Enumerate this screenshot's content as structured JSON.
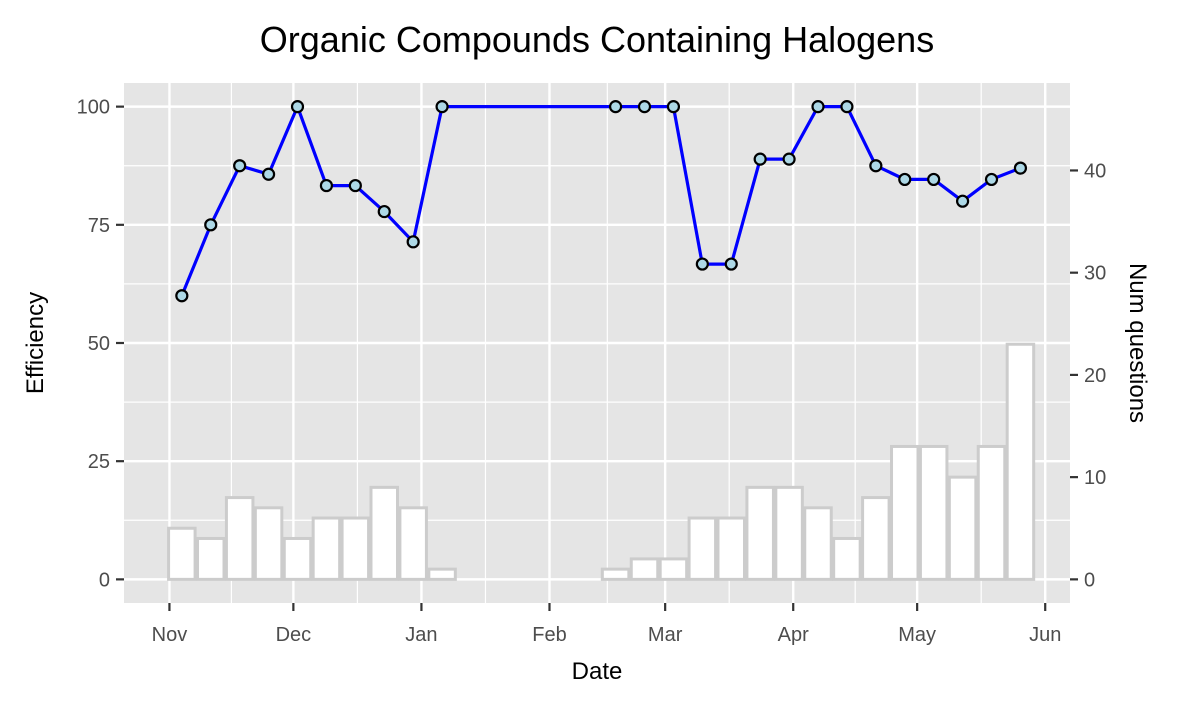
{
  "chart_data": {
    "type": "line",
    "title": "Organic Compounds Containing Halogens",
    "xlabel": "Date",
    "ylabel": "Efficiency",
    "y2label": "Num questions",
    "x_ticks": [
      "Nov",
      "Dec",
      "Jan",
      "Feb",
      "Mar",
      "Apr",
      "May",
      "Jun"
    ],
    "x_tick_dates": [
      "2020-11-01",
      "2020-12-01",
      "2021-01-01",
      "2021-02-01",
      "2021-03-01",
      "2021-04-01",
      "2021-05-01",
      "2021-06-01"
    ],
    "xlim": [
      "2020-10-21",
      "2021-06-07"
    ],
    "y_ticks": [
      "0",
      "25",
      "50",
      "75",
      "100"
    ],
    "ylim": [
      -5,
      105
    ],
    "y2_ticks": [
      "0",
      "10",
      "20",
      "30",
      "40"
    ],
    "grid": true,
    "colors": {
      "panel": "#e5e5e5",
      "grid": "#ffffff",
      "line": "#0000ff",
      "point_fill": "#add8e6",
      "point_edge": "#000000",
      "bar_fill": "#ffffff",
      "bar_edge": "#cccccc"
    },
    "series": [
      {
        "type": "line",
        "axis": "left",
        "x": [
          "2020-11-04",
          "2020-11-11",
          "2020-11-18",
          "2020-11-25",
          "2020-12-02",
          "2020-12-09",
          "2020-12-16",
          "2020-12-23",
          "2020-12-30",
          "2021-01-06",
          "2021-02-17",
          "2021-02-24",
          "2021-03-03",
          "2021-03-10",
          "2021-03-17",
          "2021-03-24",
          "2021-03-31",
          "2021-04-07",
          "2021-04-14",
          "2021-04-21",
          "2021-04-28",
          "2021-05-05",
          "2021-05-12",
          "2021-05-19",
          "2021-05-26"
        ],
        "values": [
          60,
          75,
          87.5,
          85.7,
          100,
          83.3,
          83.3,
          77.8,
          71.4,
          100,
          100,
          100,
          100,
          66.7,
          66.7,
          88.9,
          88.9,
          100,
          100,
          87.5,
          84.6,
          84.6,
          80,
          84.6,
          87
        ]
      },
      {
        "type": "bar",
        "axis": "right",
        "x": [
          "2020-11-04",
          "2020-11-11",
          "2020-11-18",
          "2020-11-25",
          "2020-12-02",
          "2020-12-09",
          "2020-12-16",
          "2020-12-23",
          "2020-12-30",
          "2021-01-06",
          "2021-02-17",
          "2021-02-24",
          "2021-03-03",
          "2021-03-10",
          "2021-03-17",
          "2021-03-24",
          "2021-03-31",
          "2021-04-07",
          "2021-04-14",
          "2021-04-21",
          "2021-04-28",
          "2021-05-05",
          "2021-05-12",
          "2021-05-19",
          "2021-05-26"
        ],
        "values": [
          5,
          4,
          8,
          7,
          4,
          6,
          6,
          9,
          7,
          1,
          1,
          2,
          2,
          6,
          6,
          9,
          9,
          7,
          4,
          8,
          13,
          13,
          10,
          13,
          23
        ]
      }
    ]
  }
}
